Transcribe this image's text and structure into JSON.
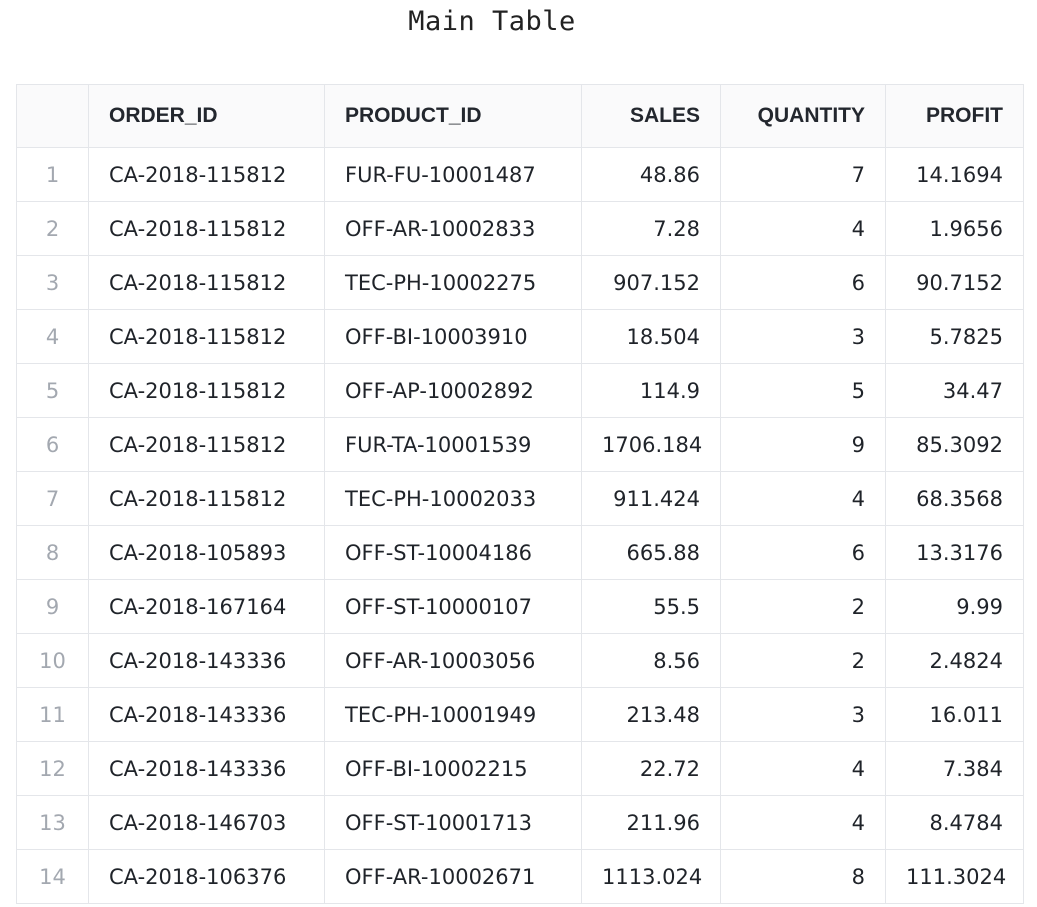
{
  "title": "Main Table",
  "table": {
    "columns": [
      "",
      "ORDER_ID",
      "PRODUCT_ID",
      "SALES",
      "QUANTITY",
      "PROFIT"
    ],
    "rows": [
      [
        "1",
        "CA-2018-115812",
        "FUR-FU-10001487",
        "48.86",
        "7",
        "14.1694"
      ],
      [
        "2",
        "CA-2018-115812",
        "OFF-AR-10002833",
        "7.28",
        "4",
        "1.9656"
      ],
      [
        "3",
        "CA-2018-115812",
        "TEC-PH-10002275",
        "907.152",
        "6",
        "90.7152"
      ],
      [
        "4",
        "CA-2018-115812",
        "OFF-BI-10003910",
        "18.504",
        "3",
        "5.7825"
      ],
      [
        "5",
        "CA-2018-115812",
        "OFF-AP-10002892",
        "114.9",
        "5",
        "34.47"
      ],
      [
        "6",
        "CA-2018-115812",
        "FUR-TA-10001539",
        "1706.184",
        "9",
        "85.3092"
      ],
      [
        "7",
        "CA-2018-115812",
        "TEC-PH-10002033",
        "911.424",
        "4",
        "68.3568"
      ],
      [
        "8",
        "CA-2018-105893",
        "OFF-ST-10004186",
        "665.88",
        "6",
        "13.3176"
      ],
      [
        "9",
        "CA-2018-167164",
        "OFF-ST-10000107",
        "55.5",
        "2",
        "9.99"
      ],
      [
        "10",
        "CA-2018-143336",
        "OFF-AR-10003056",
        "8.56",
        "2",
        "2.4824"
      ],
      [
        "11",
        "CA-2018-143336",
        "TEC-PH-10001949",
        "213.48",
        "3",
        "16.011"
      ],
      [
        "12",
        "CA-2018-143336",
        "OFF-BI-10002215",
        "22.72",
        "4",
        "7.384"
      ],
      [
        "13",
        "CA-2018-146703",
        "OFF-ST-10001713",
        "211.96",
        "4",
        "8.4784"
      ],
      [
        "14",
        "CA-2018-106376",
        "OFF-AR-10002671",
        "1113.024",
        "8",
        "111.3024"
      ]
    ]
  }
}
